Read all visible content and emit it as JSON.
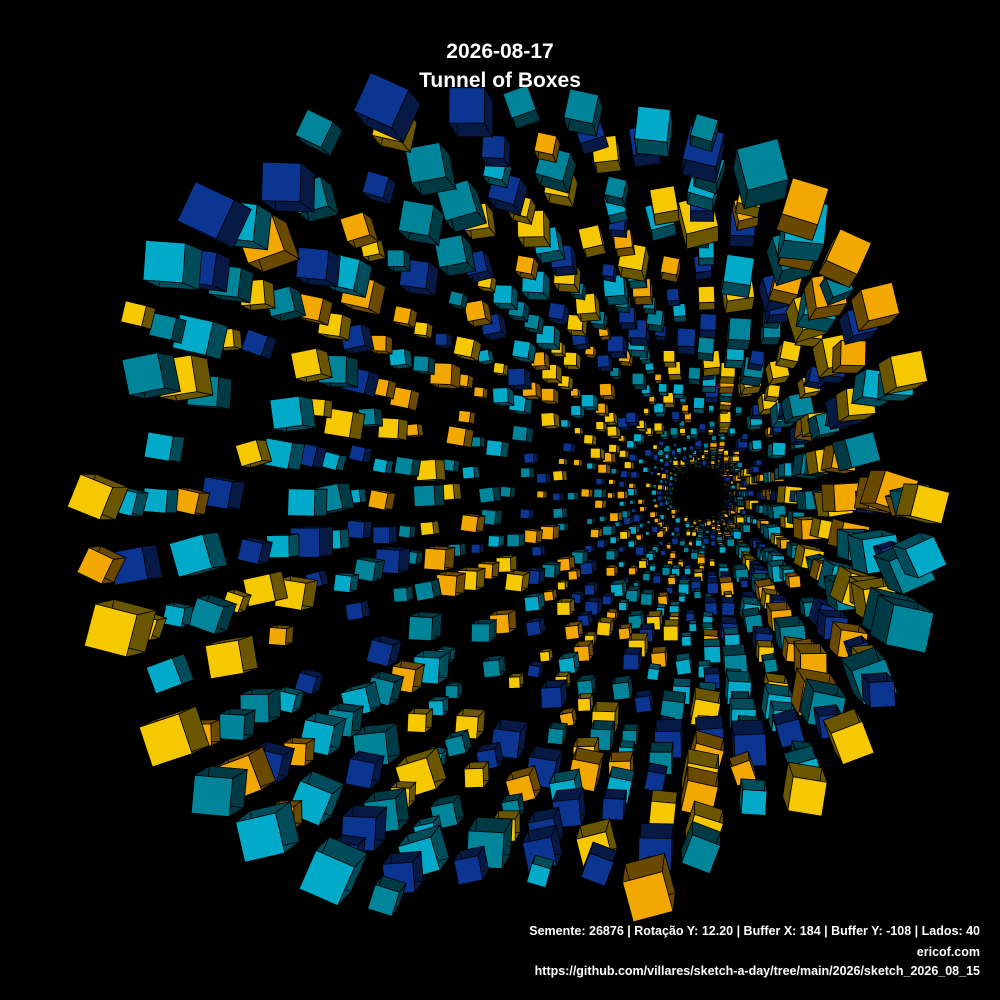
{
  "header": {
    "date": "2026-08-17",
    "title": "Tunnel of Boxes"
  },
  "footer": {
    "params": "Semente: 26876 | Rotação Y: 12.20 | Buffer X: 184 | Buffer Y: -108 | Lados: 40",
    "site": "ericof.com",
    "url": "https://github.com/villares/sketch-a-day/tree/main/2026/sketch_2026_08_15"
  }
}
